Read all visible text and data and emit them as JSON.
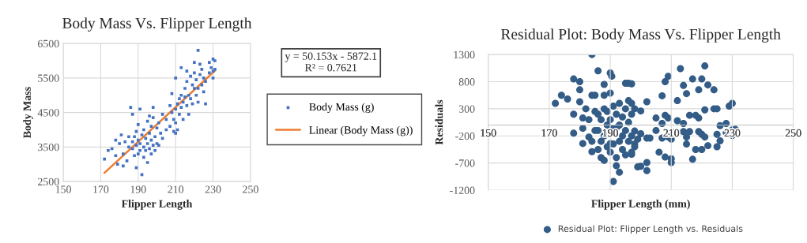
{
  "chart_data": [
    {
      "type": "scatter",
      "title": "Body Mass Vs. Flipper Length",
      "xlabel": "Flipper Length",
      "ylabel": "Body Mass",
      "xlim": [
        150,
        250
      ],
      "xticks": [
        150,
        170,
        190,
        210,
        230,
        250
      ],
      "ylim": [
        2500,
        6500
      ],
      "yticks": [
        2500,
        3500,
        4500,
        5500,
        6500
      ],
      "grid": true,
      "legend": "right",
      "annotations": [
        "y = 50.153x - 5872.1\nR² = 0.7621"
      ],
      "series": [
        {
          "name": "Body Mass (g)",
          "color": "#4472c4",
          "marker": "square",
          "x": [
            172,
            174,
            176,
            178,
            178,
            179,
            180,
            181,
            182,
            182,
            183,
            184,
            185,
            185,
            186,
            187,
            187,
            187,
            188,
            188,
            189,
            189,
            189,
            190,
            190,
            190,
            191,
            191,
            191,
            192,
            192,
            193,
            193,
            193,
            194,
            194,
            195,
            195,
            195,
            196,
            196,
            196,
            197,
            197,
            197,
            198,
            198,
            198,
            199,
            199,
            200,
            200,
            201,
            201,
            202,
            203,
            203,
            205,
            205,
            207,
            207,
            208,
            208,
            209,
            209,
            210,
            210,
            210,
            210,
            211,
            211,
            212,
            212,
            213,
            213,
            213,
            214,
            214,
            215,
            215,
            216,
            216,
            216,
            217,
            217,
            218,
            218,
            219,
            219,
            220,
            220,
            220,
            221,
            221,
            222,
            222,
            222,
            223,
            223,
            224,
            224,
            225,
            225,
            226,
            226,
            228,
            228,
            229,
            230,
            230,
            230,
            231,
            231
          ],
          "values": [
            3150,
            3400,
            3450,
            3250,
            3700,
            3000,
            3600,
            3850,
            2950,
            3300,
            3650,
            3100,
            3500,
            3800,
            4650,
            3450,
            3650,
            4450,
            3250,
            3800,
            2900,
            3550,
            3950,
            3300,
            3700,
            4150,
            3400,
            3600,
            4600,
            2700,
            3850,
            3200,
            4000,
            3500,
            3400,
            3750,
            3050,
            4250,
            3600,
            3900,
            3450,
            4400,
            3700,
            3300,
            4100,
            4350,
            3550,
            4650,
            3800,
            3400,
            4050,
            3600,
            4200,
            3550,
            3900,
            4450,
            3750,
            4300,
            4000,
            4700,
            4100,
            4500,
            5050,
            4300,
            3950,
            4600,
            4200,
            3900,
            5500,
            4750,
            4000,
            4450,
            4900,
            5000,
            4650,
            5800,
            4800,
            4300,
            5200,
            4950,
            5400,
            4700,
            5700,
            5000,
            4450,
            5550,
            4900,
            5300,
            4750,
            5650,
            5200,
            5950,
            5000,
            5450,
            6300,
            5200,
            4800,
            5600,
            5900,
            5300,
            5750,
            5100,
            5500,
            5400,
            4750,
            5650,
            5950,
            5800,
            5500,
            6050,
            5700,
            6000,
            5750
          ]
        },
        {
          "name": "Linear (Body Mass (g))",
          "type": "line",
          "color": "#ed7d31",
          "x": [
            172,
            231
          ],
          "values": [
            2750,
            5710
          ]
        }
      ]
    },
    {
      "type": "scatter",
      "title": "Residual Plot: Body Mass Vs. Flipper Length",
      "xlabel": "Flipper Length (mm)",
      "ylabel": "Residuals",
      "xlim": [
        150,
        250
      ],
      "xticks": [
        150,
        170,
        190,
        210,
        230,
        250
      ],
      "ylim": [
        -1200,
        1300
      ],
      "yticks": [
        -1200,
        -700,
        -200,
        300,
        800,
        1300
      ],
      "grid": true,
      "legend": "bottom",
      "marker": "circle",
      "series": [
        {
          "name": "Residual Plot: Flipper Length vs. Residuals",
          "color": "#335c87",
          "x": [
            184,
            172,
            174,
            176,
            178,
            178,
            178,
            180,
            180,
            180,
            181,
            181,
            181,
            183,
            184,
            184,
            185,
            186,
            188,
            188,
            187,
            188,
            190,
            190.5,
            190,
            191,
            193,
            192,
            195,
            196,
            213,
            221,
            209,
            208,
            217,
            220,
            207,
            197,
            222,
            224,
            219,
            214,
            215,
            212,
            230,
            229,
            210,
            210,
            208,
            206,
            217,
            225,
            222,
            202,
            200,
            199,
            202,
            205,
            205,
            202,
            200,
            197,
            215,
            218,
            220,
            226,
            230,
            231,
            230,
            228,
            228,
            226,
            224,
            225,
            221,
            219,
            218,
            216,
            214,
            212,
            211,
            209,
            208,
            207,
            207,
            209,
            210,
            212,
            214,
            216,
            219,
            220,
            221,
            225,
            215,
            198,
            199,
            198,
            197,
            202,
            203,
            197,
            200,
            186,
            186,
            187,
            187,
            188,
            188,
            189,
            189,
            189,
            190,
            190,
            190,
            191,
            191,
            191,
            192,
            192,
            192,
            193,
            193,
            193,
            194,
            194,
            194,
            195,
            195,
            195,
            196,
            196,
            196,
            197,
            197,
            198,
            198,
            183,
            184,
            185,
            182,
            185,
            186
          ],
          "values": [
            1300,
            400,
            550,
            480,
            850,
            200,
            -150,
            800,
            650,
            430,
            130,
            -60,
            -340,
            -220,
            -490,
            550,
            550,
            1000,
            750,
            550,
            -600,
            -650,
            960,
            900,
            590,
            -1040,
            -870,
            -750,
            770,
            770,
            1040,
            1090,
            900,
            800,
            850,
            850,
            540,
            760,
            740,
            650,
            650,
            730,
            580,
            450,
            400,
            350,
            -690,
            -620,
            -590,
            -500,
            -630,
            -400,
            -380,
            -840,
            -760,
            -770,
            -690,
            -100,
            130,
            430,
            260,
            400,
            -350,
            -450,
            -450,
            -290,
            -90,
            -80,
            -190,
            30,
            -140,
            -10,
            300,
            300,
            280,
            130,
            180,
            180,
            30,
            80,
            -140,
            130,
            180,
            30,
            -240,
            -220,
            -260,
            -140,
            -120,
            -120,
            -120,
            -170,
            -220,
            -170,
            -220,
            -110,
            -260,
            -350,
            -500,
            -240,
            -240,
            -540,
            -160,
            200,
            -100,
            -300,
            100,
            -200,
            300,
            0,
            -400,
            250,
            -340,
            100,
            -500,
            350,
            -60,
            -350,
            -50,
            200,
            -600,
            400,
            -300,
            0,
            150,
            -200,
            -450,
            300,
            -100,
            -550,
            450,
            -300,
            50,
            200,
            -200,
            300,
            -400,
            100,
            -300,
            -100,
            300,
            250,
            -450
          ]
        }
      ]
    }
  ]
}
